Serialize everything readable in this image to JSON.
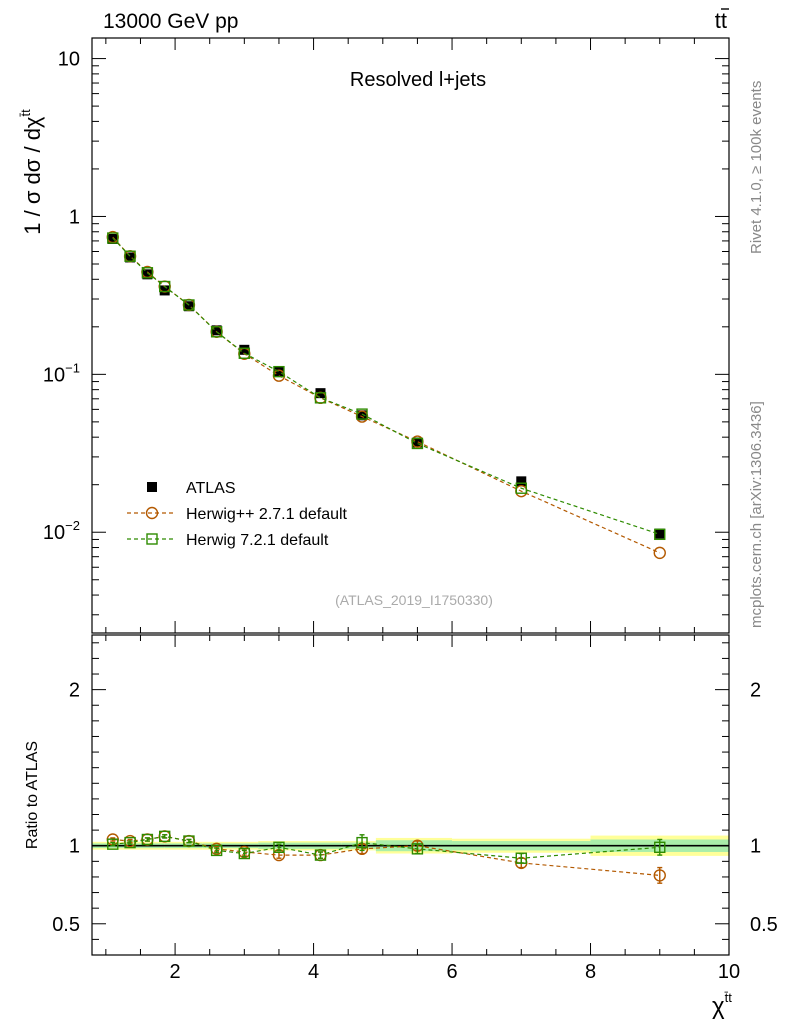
{
  "chart_data": {
    "type": "scatter",
    "header": {
      "left": "13000 GeV pp",
      "right_base": "t",
      "right_bar": "t"
    },
    "title": "Resolved l+jets",
    "watermark": "(ATLAS_2019_I1750330)",
    "side_labels": {
      "top": "Rivet 4.1.0, ≥ 100k events",
      "bottom": "mcplots.cern.ch [arXiv:1306.3436]"
    },
    "ylabel_main": {
      "base": "1 / σ dσ / dχ",
      "sup": "t̄t"
    },
    "ylabel_ratio": "Ratio to ATLAS",
    "xlabel": {
      "base": "χ",
      "sup": "t̄t"
    },
    "xlim": [
      0.8,
      10.0
    ],
    "ylim_main": [
      0.0023,
      13.5
    ],
    "ylim_ratio": [
      0.3,
      2.35
    ],
    "x_ticks": [
      {
        "value": 2,
        "label": "2"
      },
      {
        "value": 4,
        "label": "4"
      },
      {
        "value": 6,
        "label": "6"
      },
      {
        "value": 8,
        "label": "8"
      },
      {
        "value": 10,
        "label": "10"
      }
    ],
    "y_ticks_main": [
      {
        "value": 10,
        "base": "10",
        "exp": ""
      },
      {
        "value": 1,
        "base": "1",
        "exp": ""
      },
      {
        "value": 0.1,
        "base": "10",
        "exp": "−1"
      },
      {
        "value": 0.01,
        "base": "10",
        "exp": "−2"
      }
    ],
    "y_ticks_ratio": [
      {
        "value": 2,
        "label": "2"
      },
      {
        "value": 1,
        "label": "1"
      },
      {
        "value": 0.5,
        "label": "0.5"
      }
    ],
    "x": [
      1.1,
      1.35,
      1.6,
      1.85,
      2.2,
      2.6,
      3.0,
      3.5,
      4.1,
      4.7,
      5.5,
      7.0,
      9.0
    ],
    "series": [
      {
        "name": "ATLAS",
        "color": "#000000",
        "marker": "filled-square",
        "values": [
          0.72,
          0.55,
          0.43,
          0.34,
          0.27,
          0.19,
          0.143,
          0.104,
          0.076,
          0.055,
          0.037,
          0.021,
          0.0098
        ]
      },
      {
        "name": "Herwig++ 2.7.1 default",
        "color": "#b35900",
        "marker": "open-circle",
        "values": [
          0.74,
          0.56,
          0.445,
          0.36,
          0.275,
          0.186,
          0.135,
          0.098,
          0.071,
          0.054,
          0.0375,
          0.0182,
          0.0074
        ],
        "ratio": [
          1.04,
          1.03,
          1.04,
          1.06,
          1.03,
          0.98,
          0.96,
          0.94,
          0.94,
          0.98,
          1.0,
          0.89,
          0.81
        ],
        "ratio_err": [
          0.01,
          0.01,
          0.01,
          0.01,
          0.01,
          0.015,
          0.02,
          0.02,
          0.02,
          0.03,
          0.03,
          0.03,
          0.05
        ]
      },
      {
        "name": "Herwig 7.2.1 default",
        "color": "#2e8b00",
        "marker": "open-square",
        "values": [
          0.73,
          0.56,
          0.44,
          0.36,
          0.275,
          0.186,
          0.136,
          0.104,
          0.071,
          0.056,
          0.0365,
          0.019,
          0.0097
        ],
        "ratio": [
          1.01,
          1.02,
          1.04,
          1.06,
          1.03,
          0.97,
          0.95,
          0.99,
          0.94,
          1.02,
          0.98,
          0.92,
          0.99
        ],
        "ratio_err": [
          0.01,
          0.01,
          0.01,
          0.01,
          0.01,
          0.015,
          0.02,
          0.02,
          0.02,
          0.05,
          0.03,
          0.03,
          0.05
        ]
      }
    ],
    "ratio_band": {
      "edges": [
        0.8,
        1.85,
        2.4,
        3.2,
        4.4,
        4.9,
        6.0,
        8.0,
        10.0
      ],
      "inner": [
        0.015,
        0.015,
        0.015,
        0.02,
        0.02,
        0.035,
        0.03,
        0.04
      ],
      "outer": [
        0.025,
        0.025,
        0.025,
        0.03,
        0.03,
        0.05,
        0.045,
        0.065
      ],
      "inner_color": "#aaeeaa",
      "outer_color": "#ffff99"
    }
  }
}
